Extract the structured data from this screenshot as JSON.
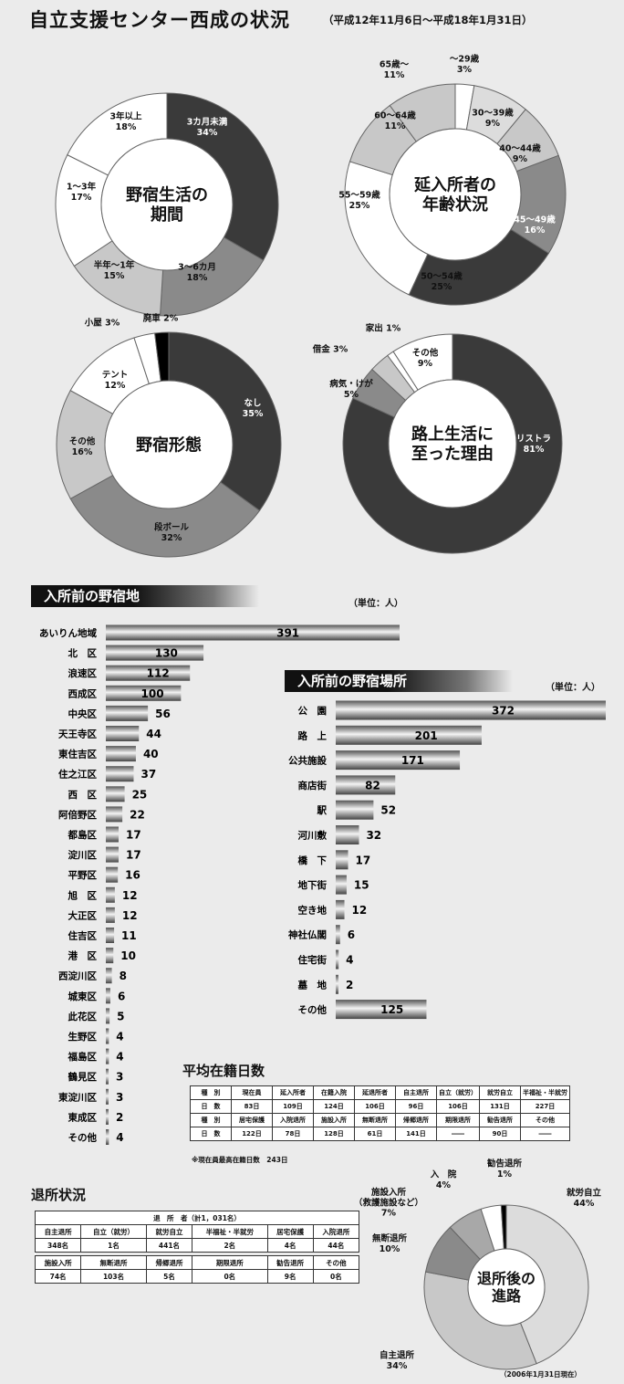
{
  "title": "自立支援センター西成の状況",
  "period": "（平成12年11月6日～平成18年1月31日）",
  "colors": {
    "dark": "#3a3a3a",
    "mid": "#8a8a8a",
    "mid2": "#a8a8a8",
    "light": "#c8c8c8",
    "pale": "#dcdcdc",
    "white": "#ffffff",
    "black": "#000000"
  },
  "chart_data": [
    {
      "type": "pie",
      "id": "period",
      "center_label": [
        "野宿生活の",
        "期間"
      ],
      "slices": [
        {
          "label": "3カ月未満",
          "value": 34
        },
        {
          "label": "3～6カ月",
          "value": 18
        },
        {
          "label": "半年～1年",
          "value": 15
        },
        {
          "label": "1～3年",
          "value": 17
        },
        {
          "label": "3年以上",
          "value": 18
        }
      ]
    },
    {
      "type": "pie",
      "id": "age",
      "center_label": [
        "延入所者の",
        "年齢状況"
      ],
      "slices": [
        {
          "label": "～29歳",
          "value": 3
        },
        {
          "label": "30～39歳",
          "value": 9
        },
        {
          "label": "40～44歳",
          "value": 9
        },
        {
          "label": "45～49歳",
          "value": 16
        },
        {
          "label": "50～54歳",
          "value": 25
        },
        {
          "label": "55～59歳",
          "value": 25
        },
        {
          "label": "60～64歳",
          "value": 11
        },
        {
          "label": "65歳～",
          "value": 11
        }
      ]
    },
    {
      "type": "pie",
      "id": "form",
      "center_label": [
        "野宿形態"
      ],
      "slices": [
        {
          "label": "なし",
          "value": 35
        },
        {
          "label": "段ボール",
          "value": 32
        },
        {
          "label": "その他",
          "value": 16
        },
        {
          "label": "テント",
          "value": 12
        },
        {
          "label": "小屋",
          "value": 3
        },
        {
          "label": "廃車",
          "value": 2
        }
      ]
    },
    {
      "type": "pie",
      "id": "reason",
      "center_label": [
        "路上生活に",
        "至った理由"
      ],
      "slices": [
        {
          "label": "リストラ",
          "value": 81
        },
        {
          "label": "病気・けが",
          "value": 5
        },
        {
          "label": "借金",
          "value": 3
        },
        {
          "label": "家出",
          "value": 1
        },
        {
          "label": "その他",
          "value": 9
        }
      ]
    },
    {
      "type": "bar",
      "id": "area",
      "title": "入所前の野宿地",
      "unit": "（単位：人）",
      "categories": [
        "あいりん地域",
        "北　区",
        "浪速区",
        "西成区",
        "中央区",
        "天王寺区",
        "東住吉区",
        "住之江区",
        "西　区",
        "阿倍野区",
        "都島区",
        "淀川区",
        "平野区",
        "旭　区",
        "大正区",
        "住吉区",
        "港　区",
        "西淀川区",
        "城東区",
        "此花区",
        "生野区",
        "福島区",
        "鶴見区",
        "東淀川区",
        "東成区",
        "その他"
      ],
      "values": [
        391,
        130,
        112,
        100,
        56,
        44,
        40,
        37,
        25,
        22,
        17,
        17,
        16,
        12,
        12,
        11,
        10,
        8,
        6,
        5,
        4,
        4,
        3,
        3,
        2,
        4
      ]
    },
    {
      "type": "bar",
      "id": "place",
      "title": "入所前の野宿場所",
      "unit": "（単位：人）",
      "categories": [
        "公　園",
        "路　上",
        "公共施設",
        "商店街",
        "駅",
        "河川敷",
        "橋　下",
        "地下街",
        "空き地",
        "神社仏閣",
        "住宅街",
        "墓　地",
        "その他"
      ],
      "values": [
        372,
        201,
        171,
        82,
        52,
        32,
        17,
        15,
        12,
        6,
        4,
        2,
        125
      ]
    },
    {
      "type": "pie",
      "id": "after",
      "center_label": [
        "退所後の",
        "進路"
      ],
      "slices": [
        {
          "label": "就労自立",
          "value": 44
        },
        {
          "label": "自主退所",
          "value": 34
        },
        {
          "label": "無断退所",
          "value": 10
        },
        {
          "label": "施設入所（救護施設など）",
          "value": 7
        },
        {
          "label": "入　院",
          "value": 4
        },
        {
          "label": "勧告退所",
          "value": 1
        }
      ]
    }
  ],
  "pie_labels": {
    "period": [
      "3カ月未満\n34%",
      "3～6カ月\n18%",
      "半年～1年\n15%",
      "1～3年\n17%",
      "3年以上\n18%"
    ],
    "age": [
      "～29歳\n3%",
      "30～39歳\n9%",
      "40～44歳\n9%",
      "45～49歳\n16%",
      "50～54歳\n25%",
      "55～59歳\n25%",
      "60～64歳\n11%",
      "65歳～\n11%"
    ],
    "form": [
      "なし\n35%",
      "段ボール\n32%",
      "その他\n16%",
      "テント\n12%",
      "小屋 3%",
      "廃車 2%"
    ],
    "reason": [
      "リストラ\n81%",
      "病気・けが\n5%",
      "借金 3%",
      "家出 1%",
      "その他\n9%"
    ],
    "after": [
      "就労自立\n44%",
      "自主退所\n34%",
      "無断退所\n10%",
      "施設入所\n（救護施設など）\n7%",
      "入　院\n4%",
      "勧告退所\n1%"
    ]
  },
  "avg_days": {
    "title": "平均在籍日数",
    "rows": [
      [
        "種　別",
        "現在員",
        "延入所者",
        "在籍入院",
        "延退所者",
        "自主退所",
        "自立（就労）",
        "就労自立",
        "半福祉・半就労"
      ],
      [
        "日　数",
        "83日",
        "109日",
        "124日",
        "106日",
        "96日",
        "106日",
        "131日",
        "227日"
      ],
      [
        "種　別",
        "居宅保護",
        "入院退所",
        "施設入所",
        "無断退所",
        "帰郷退所",
        "期限退所",
        "勧告退所",
        "その他"
      ],
      [
        "日　数",
        "122日",
        "78日",
        "128日",
        "61日",
        "141日",
        "――",
        "90日",
        "――"
      ]
    ],
    "note": "※現在員最高在籍日数　243日"
  },
  "discharge": {
    "title": "退所状況",
    "header": "退　所　者（計1，031名）",
    "rows": [
      [
        "自主退所",
        "自立（就労）",
        "就労自立",
        "半福祉・半就労",
        "居宅保護",
        "入院退所"
      ],
      [
        "348名",
        "1名",
        "441名",
        "2名",
        "4名",
        "44名"
      ],
      [
        "施設入所",
        "無断退所",
        "帰郷退所",
        "期限退所",
        "勧告退所",
        "その他"
      ],
      [
        "74名",
        "103名",
        "5名",
        "0名",
        "9名",
        "0名"
      ]
    ]
  },
  "asof": "（2006年1月31日現在）"
}
